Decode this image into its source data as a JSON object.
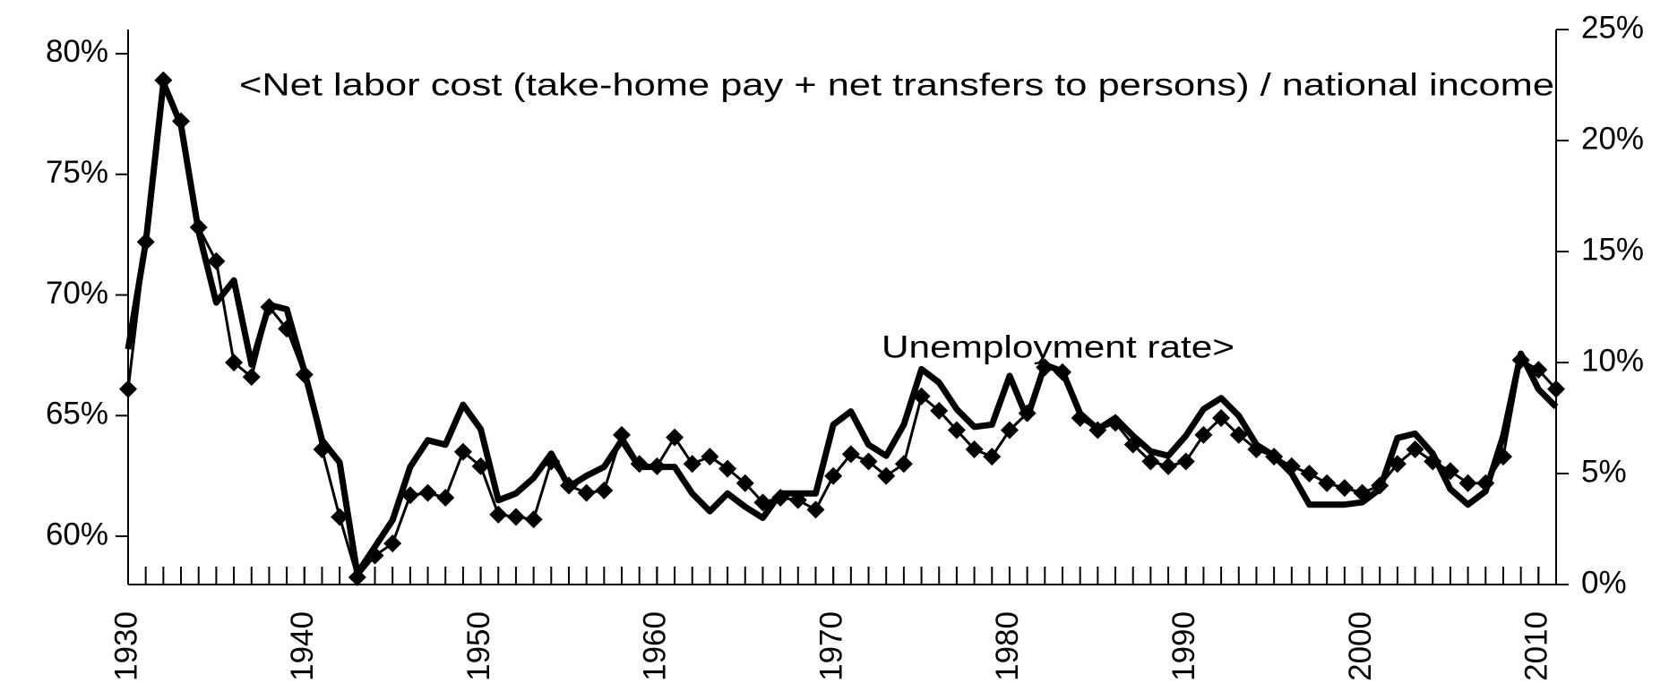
{
  "chart_data": {
    "type": "line",
    "x": [
      1930,
      1931,
      1932,
      1933,
      1934,
      1935,
      1936,
      1937,
      1938,
      1939,
      1940,
      1941,
      1942,
      1943,
      1944,
      1945,
      1946,
      1947,
      1948,
      1949,
      1950,
      1951,
      1952,
      1953,
      1954,
      1955,
      1956,
      1957,
      1958,
      1959,
      1960,
      1961,
      1962,
      1963,
      1964,
      1965,
      1966,
      1967,
      1968,
      1969,
      1970,
      1971,
      1972,
      1973,
      1974,
      1975,
      1976,
      1977,
      1978,
      1979,
      1980,
      1981,
      1982,
      1983,
      1984,
      1985,
      1986,
      1987,
      1988,
      1989,
      1990,
      1991,
      1992,
      1993,
      1994,
      1995,
      1996,
      1997,
      1998,
      1999,
      2000,
      2001,
      2002,
      2003,
      2004,
      2005,
      2006,
      2007,
      2008,
      2009,
      2010,
      2011
    ],
    "series": [
      {
        "name": "<Net labor cost (take-home pay + net transfers to persons) / national income",
        "color": "#000000",
        "marker": "diamond",
        "values": [
          66.1,
          72.2,
          78.9,
          77.2,
          72.8,
          71.4,
          67.2,
          66.6,
          69.5,
          68.6,
          66.7,
          63.6,
          60.8,
          58.3,
          59.2,
          59.7,
          61.7,
          61.8,
          61.6,
          63.5,
          62.9,
          60.9,
          60.8,
          60.7,
          63.1,
          62.1,
          61.8,
          61.9,
          64.2,
          63.0,
          62.9,
          64.1,
          63.0,
          63.3,
          62.8,
          62.2,
          61.4,
          61.6,
          61.5,
          61.1,
          62.5,
          63.4,
          63.1,
          62.5,
          63.0,
          65.8,
          65.2,
          64.4,
          63.6,
          63.3,
          64.4,
          65.1,
          67.0,
          66.8,
          64.9,
          64.4,
          64.7,
          63.8,
          63.1,
          62.9,
          63.1,
          64.2,
          64.9,
          64.2,
          63.6,
          63.3,
          62.9,
          62.6,
          62.2,
          62.0,
          61.8,
          62.1,
          63.0,
          63.6,
          63.1,
          62.7,
          62.2,
          62.2,
          63.3,
          67.3,
          66.9,
          66.1
        ]
      },
      {
        "name": "Unemployment rate>",
        "color": "#000000",
        "axis": "y2",
        "values": [
          10.6,
          15.4,
          22.6,
          20.7,
          15.9,
          12.7,
          13.7,
          9.9,
          12.6,
          12.4,
          9.6,
          6.5,
          5.5,
          0.5,
          1.7,
          2.9,
          5.3,
          6.5,
          6.3,
          8.1,
          7.0,
          3.8,
          4.1,
          4.8,
          5.9,
          4.4,
          4.9,
          5.3,
          6.5,
          5.3,
          5.3,
          5.3,
          4.1,
          3.3,
          4.1,
          3.5,
          3.0,
          4.1,
          4.1,
          4.1,
          7.2,
          7.8,
          6.3,
          5.8,
          7.2,
          9.7,
          9.1,
          7.9,
          7.1,
          7.2,
          9.4,
          7.5,
          9.9,
          9.6,
          7.7,
          7.0,
          7.5,
          6.7,
          6.0,
          5.8,
          6.7,
          7.9,
          8.4,
          7.6,
          6.3,
          5.8,
          5.0,
          3.6,
          3.6,
          3.6,
          3.7,
          4.3,
          6.6,
          6.8,
          5.9,
          4.3,
          3.6,
          4.2,
          6.7,
          10.4,
          8.8,
          8.0
        ]
      }
    ],
    "xlim": [
      1930,
      2011
    ],
    "xticks": [
      1930,
      1940,
      1950,
      1960,
      1970,
      1980,
      1990,
      2000,
      2010
    ],
    "ylim": [
      58,
      81
    ],
    "yticks": [
      {
        "value": 60,
        "label": "60%"
      },
      {
        "value": 65,
        "label": "65%"
      },
      {
        "value": 70,
        "label": "70%"
      },
      {
        "value": 75,
        "label": "75%"
      },
      {
        "value": 80,
        "label": "80%"
      }
    ],
    "y2lim": [
      0,
      25
    ],
    "y2ticks": [
      {
        "value": 0,
        "label": "0%"
      },
      {
        "value": 5,
        "label": "5%"
      },
      {
        "value": 10,
        "label": "10%"
      },
      {
        "value": 15,
        "label": "15%"
      },
      {
        "value": 20,
        "label": "20%"
      },
      {
        "value": 25,
        "label": "25%"
      }
    ],
    "grid": false
  }
}
